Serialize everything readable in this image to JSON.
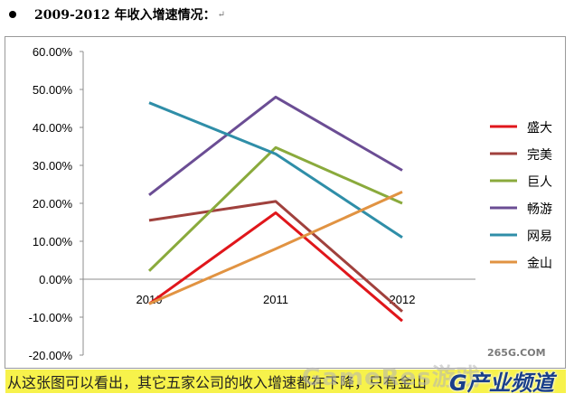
{
  "heading": {
    "title": "2009-2012 年收入增速情况：",
    "return_mark": "↵"
  },
  "chart_data": {
    "type": "line",
    "title": "",
    "xlabel": "",
    "ylabel": "",
    "x": [
      "2010",
      "2011",
      "2012"
    ],
    "yticks": [
      "60.00%",
      "50.00%",
      "40.00%",
      "30.00%",
      "20.00%",
      "10.00%",
      "0.00%",
      "-10.00%",
      "-20.00%"
    ],
    "ylim": [
      -0.2,
      0.6
    ],
    "grid": false,
    "legend_position": "right",
    "series": [
      {
        "name": "盛大",
        "values": [
          -0.065,
          0.175,
          -0.11
        ],
        "color": "#e0161b"
      },
      {
        "name": "完美",
        "values": [
          0.155,
          0.205,
          -0.085
        ],
        "color": "#a0413d"
      },
      {
        "name": "巨人",
        "values": [
          0.022,
          0.347,
          0.2
        ],
        "color": "#8aaa3c"
      },
      {
        "name": "畅游",
        "values": [
          0.222,
          0.48,
          0.287
        ],
        "color": "#6b4d94"
      },
      {
        "name": "网易",
        "values": [
          0.465,
          0.33,
          0.11
        ],
        "color": "#2f8ea8"
      },
      {
        "name": "金山",
        "values": [
          -0.065,
          0.08,
          0.23
        ],
        "color": "#e19342"
      }
    ]
  },
  "footer": {
    "text": "从这张图可以看出，其它五家公司的收入增速都在下降，只有金山",
    "highlight_color": "#f7f24b"
  },
  "watermarks": {
    "site": "265G.COM",
    "big": "GameRes游戏",
    "brand": "G产业频道"
  }
}
